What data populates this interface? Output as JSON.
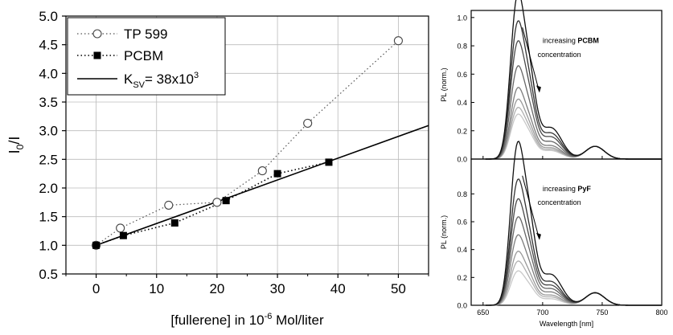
{
  "chart_data": [
    {
      "type": "scatter",
      "xlabel": "[fullerene] in 10",
      "xlabel_sup": "-6",
      "xlabel_suffix": " Mol/liter",
      "ylabel": "I",
      "ylabel_sub": "0",
      "ylabel_suffix": "/I",
      "xlim": [
        -5,
        55
      ],
      "ylim": [
        0.5,
        5.0
      ],
      "xticks": [
        0,
        10,
        20,
        30,
        40,
        50
      ],
      "yticks": [
        0.5,
        1.0,
        1.5,
        2.0,
        2.5,
        3.0,
        3.5,
        4.0,
        4.5,
        5.0
      ],
      "grid": true,
      "legend_position": "top-left",
      "series": [
        {
          "name": "TP 599",
          "marker": "open-circle",
          "line": "dotted",
          "x": [
            0,
            4,
            12,
            20,
            27.5,
            35,
            50
          ],
          "y": [
            1.0,
            1.3,
            1.7,
            1.75,
            2.3,
            3.13,
            4.57
          ]
        },
        {
          "name": "PCBM",
          "marker": "filled-square",
          "line": "dotted",
          "x": [
            0,
            4.5,
            13,
            21.5,
            30,
            38.5
          ],
          "y": [
            1.0,
            1.17,
            1.39,
            1.78,
            2.25,
            2.45
          ]
        },
        {
          "name": "K",
          "name_sub": "SV",
          "name_suffix": "= 38x10",
          "name_sup": "3",
          "line": "solid",
          "fit_intercept": 1.0,
          "fit_slope": 0.038
        }
      ]
    },
    {
      "type": "line",
      "xlabel": "",
      "ylabel": "PL (norm.)",
      "xlim": [
        640,
        800
      ],
      "ylim": [
        0,
        1.05
      ],
      "xticks": [
        650,
        700,
        750,
        800
      ],
      "yticks": [
        0.0,
        0.2,
        0.4,
        0.6,
        0.8,
        1.0
      ],
      "annotation": {
        "line1_prefix": "increasing ",
        "line1_bold": "PCBM",
        "line2": "concentration"
      },
      "peaks": [
        1.0,
        0.83,
        0.71,
        0.56,
        0.43,
        0.36,
        0.31,
        0.27
      ],
      "colors": [
        "#111111",
        "#333333",
        "#4a4a4a",
        "#666666",
        "#7d7d7d",
        "#999999",
        "#b0b0b0",
        "#c8c8c8"
      ]
    },
    {
      "type": "line",
      "xlabel": "Wavelength [nm]",
      "ylabel": "PL (norm.)",
      "xlim": [
        640,
        800
      ],
      "ylim": [
        0,
        1.05
      ],
      "xticks": [
        650,
        700,
        750,
        800
      ],
      "yticks": [
        0.0,
        0.2,
        0.4,
        0.6,
        0.8
      ],
      "annotation": {
        "line1_prefix": "increasing ",
        "line1_bold": "PyF",
        "line2": "concentration"
      },
      "peaks": [
        1.0,
        0.77,
        0.65,
        0.54,
        0.43,
        0.33,
        0.27,
        0.21
      ],
      "colors": [
        "#111111",
        "#333333",
        "#4a4a4a",
        "#666666",
        "#7d7d7d",
        "#999999",
        "#b0b0b0",
        "#c8c8c8"
      ]
    }
  ]
}
